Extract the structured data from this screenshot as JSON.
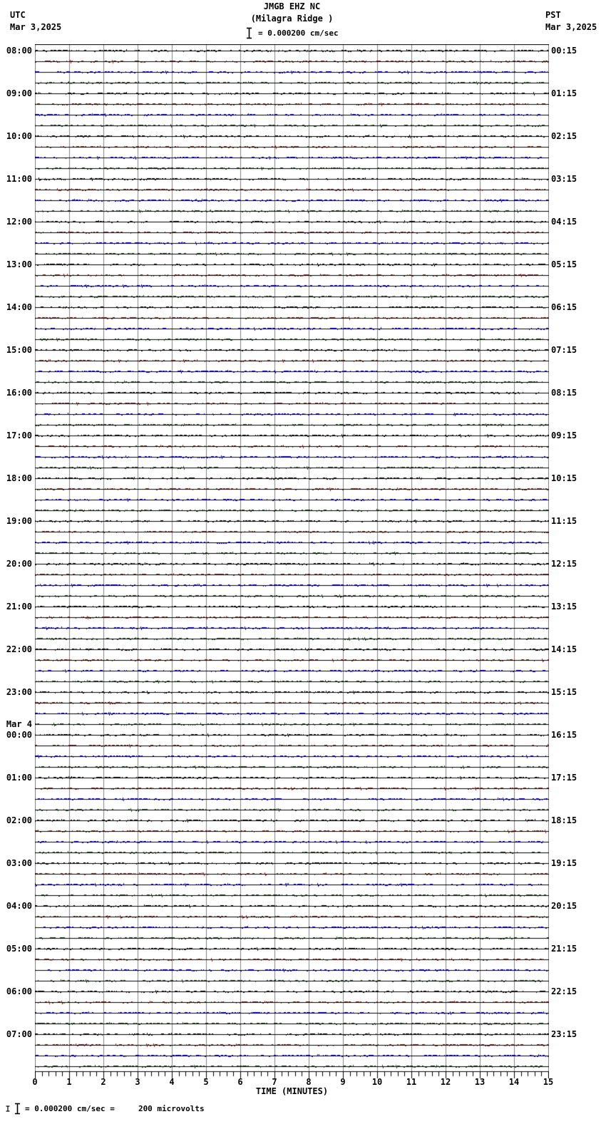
{
  "header": {
    "station": "JMGB EHZ NC",
    "location": "(Milagra Ridge )",
    "scale_text": "= 0.000200 cm/sec",
    "left_tz": "UTC",
    "left_date": "Mar 3,2025",
    "right_tz": "PST",
    "right_date": "Mar 3,2025"
  },
  "axis": {
    "label": "TIME (MINUTES)",
    "tick_labels": [
      "0",
      "1",
      "2",
      "3",
      "4",
      "5",
      "6",
      "7",
      "8",
      "9",
      "10",
      "11",
      "12",
      "13",
      "14",
      "15"
    ]
  },
  "footer": {
    "text": "= 0.000200 cm/sec =     200 microvolts"
  },
  "chart_data": {
    "type": "line",
    "title": "JMGB EHZ NC (Milagra Ridge ) 24-hour helicorder record",
    "x": {
      "label": "TIME (MINUTES)",
      "min": 0,
      "max": 15,
      "major_tick": 1,
      "minor_tick": 0.2
    },
    "grid": "vertical gray line each minute",
    "traces_per_hour": 4,
    "minutes_per_trace": 15,
    "trace_color_cycle": [
      "#000000",
      "#cc0000",
      "#0000bb",
      "#005500"
    ],
    "amplitude_scale": "0.000200 cm/sec = 200 microvolts",
    "signal": "quiet flat background microseismic noise on every trace; no visible earthquake events",
    "rows": [
      {
        "utc": "08:00",
        "pst": "00:15"
      },
      {
        "utc": "09:00",
        "pst": "01:15"
      },
      {
        "utc": "10:00",
        "pst": "02:15"
      },
      {
        "utc": "11:00",
        "pst": "03:15"
      },
      {
        "utc": "12:00",
        "pst": "04:15"
      },
      {
        "utc": "13:00",
        "pst": "05:15"
      },
      {
        "utc": "14:00",
        "pst": "06:15"
      },
      {
        "utc": "15:00",
        "pst": "07:15"
      },
      {
        "utc": "16:00",
        "pst": "08:15"
      },
      {
        "utc": "17:00",
        "pst": "09:15"
      },
      {
        "utc": "18:00",
        "pst": "10:15"
      },
      {
        "utc": "19:00",
        "pst": "11:15"
      },
      {
        "utc": "20:00",
        "pst": "12:15"
      },
      {
        "utc": "21:00",
        "pst": "13:15"
      },
      {
        "utc": "22:00",
        "pst": "14:15"
      },
      {
        "utc": "23:00",
        "pst": "15:15"
      },
      {
        "utc": "00:00",
        "utc_date": "Mar 4",
        "pst": "16:15"
      },
      {
        "utc": "01:00",
        "pst": "17:15"
      },
      {
        "utc": "02:00",
        "pst": "18:15"
      },
      {
        "utc": "03:00",
        "pst": "19:15"
      },
      {
        "utc": "04:00",
        "pst": "20:15"
      },
      {
        "utc": "05:00",
        "pst": "21:15"
      },
      {
        "utc": "06:00",
        "pst": "22:15"
      },
      {
        "utc": "07:00",
        "pst": "23:15"
      }
    ]
  },
  "colors": {
    "grid": "#808080",
    "frame": "#000000",
    "black_trace": "#000000",
    "red_trace": "#cc0000",
    "blue_trace": "#0000bb",
    "green_trace": "#005500"
  }
}
